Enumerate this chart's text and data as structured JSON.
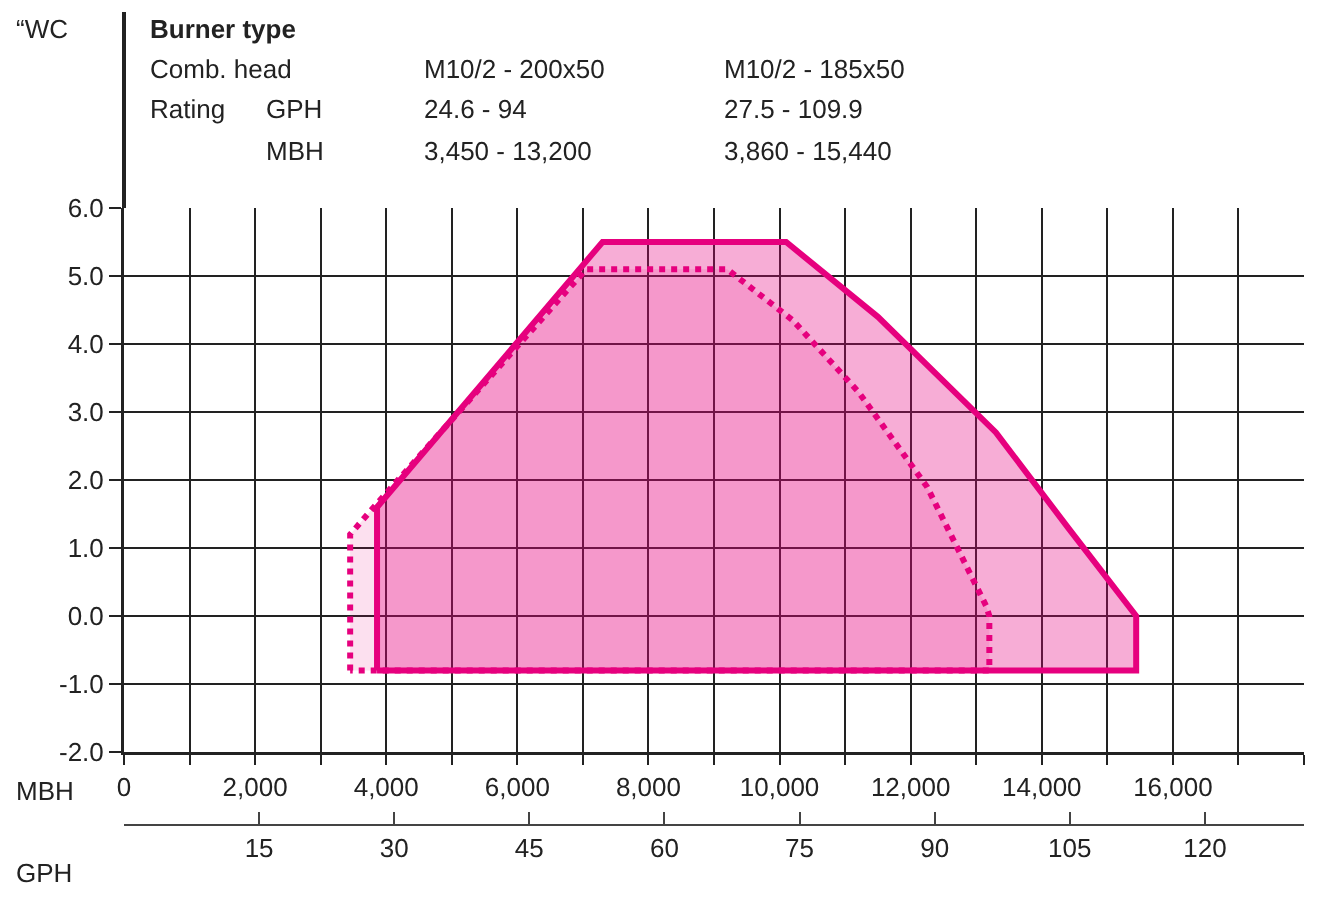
{
  "chart_data": {
    "type": "area",
    "xlabel": "MBH",
    "x2label": "GPH",
    "annotations": [
      "“WC",
      "Burner type",
      "Comb. head",
      "M10/2 - 200x50",
      "M10/2 - 185x50",
      "Rating",
      "GPH",
      "24.6 - 94",
      "27.5 - 109.9",
      "MBH",
      "3,450 - 13,200",
      "3,860 - 15,440"
    ],
    "series": [
      {
        "color": "#e6007e",
        "line_style": "solid",
        "x": [
          3860,
          3860,
          7300,
          10100,
          11500,
          13300,
          14400,
          15440,
          15440,
          3860
        ],
        "values": [
          -0.8,
          1.6,
          5.5,
          5.5,
          4.4,
          2.7,
          1.3,
          0.0,
          -0.8,
          -0.8
        ]
      },
      {
        "color": "#e6007e",
        "line_style": "dotted",
        "x": [
          3450,
          3450,
          3810,
          7050,
          9200,
          10200,
          11200,
          12250,
          13150,
          13200,
          13200,
          3450
        ],
        "values": [
          -0.8,
          1.2,
          1.6,
          5.1,
          5.1,
          4.35,
          3.3,
          1.9,
          0.15,
          0.0,
          -0.8,
          -0.8
        ]
      }
    ],
    "xlim": [
      0,
      18000
    ],
    "xticks": [
      0,
      {
        "value": 1000,
        "label": null
      },
      {
        "value": 2000,
        "label": "2,000"
      },
      {
        "value": 3000,
        "label": null
      },
      {
        "value": 4000,
        "label": "4,000"
      },
      {
        "value": 5000,
        "label": null
      },
      {
        "value": 6000,
        "label": "6,000"
      },
      {
        "value": 7000,
        "label": null
      },
      {
        "value": 8000,
        "label": "8,000"
      },
      {
        "value": 9000,
        "label": null
      },
      {
        "value": 10000,
        "label": "10,000"
      },
      {
        "value": 11000,
        "label": null
      },
      {
        "value": 12000,
        "label": "12,000"
      },
      {
        "value": 13000,
        "label": null
      },
      {
        "value": 14000,
        "label": "14,000"
      },
      {
        "value": 15000,
        "label": null
      },
      {
        "value": 16000,
        "label": "16,000"
      },
      {
        "value": 17000,
        "label": null
      },
      {
        "value": 18000,
        "label": null
      }
    ],
    "ylim": [
      -2,
      6
    ],
    "yticks": [
      {
        "value": -2,
        "label": "-2.0"
      },
      {
        "value": -1,
        "label": "-1.0"
      },
      {
        "value": 0,
        "label": "0.0"
      },
      {
        "value": 1,
        "label": "1.0"
      },
      {
        "value": 2,
        "label": "2.0"
      },
      {
        "value": 3,
        "label": "3.0"
      },
      {
        "value": 4,
        "label": "4.0"
      },
      {
        "value": 5,
        "label": "5.0"
      },
      {
        "value": 6,
        "label": "6.0"
      }
    ],
    "x2lim": [
      0,
      131
    ],
    "x2ticks": [
      15,
      30,
      45,
      60,
      75,
      90,
      105,
      120
    ],
    "grid": true,
    "marker": "none"
  }
}
